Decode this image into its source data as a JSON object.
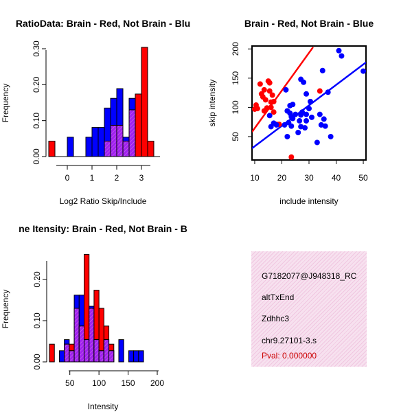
{
  "colors": {
    "red": "#ff0000",
    "blue": "#0000ff",
    "purple": "#a020f0",
    "black": "#000000",
    "pval": "#cc0000"
  },
  "chart_data": [
    {
      "type": "bar",
      "subtype": "histogram-overlay",
      "title": "RatioData: Brain - Red, Not Brain - Blu",
      "xlabel": "Log2 Ratio Skip/Include",
      "ylabel": "Frequency",
      "xlim": [
        -0.75,
        3.75
      ],
      "ylim": [
        0,
        0.3
      ],
      "xticks": [
        0,
        1,
        2,
        3
      ],
      "yticks": [
        0.0,
        0.1,
        0.2,
        0.3
      ],
      "yticklabels": [
        "0.00",
        "0.10",
        "0.20",
        "0.30"
      ],
      "bin_width": 0.25,
      "x_start": -0.75,
      "series": [
        {
          "name": "Brain",
          "color": "red",
          "values": [
            0.043,
            0,
            0,
            0,
            0,
            0,
            0,
            0,
            0,
            0.043,
            0.087,
            0.087,
            0.043,
            0.13,
            0.174,
            0.304,
            0.043
          ]
        },
        {
          "name": "Not Brain",
          "color": "blue",
          "values": [
            0,
            0,
            0,
            0.054,
            0,
            0,
            0.054,
            0.081,
            0.081,
            0.135,
            0.162,
            0.189,
            0.054,
            0.162,
            0,
            0,
            0
          ]
        }
      ]
    },
    {
      "type": "scatter",
      "title": "Brain - Red, Not Brain - Blue",
      "xlabel": "include intensity",
      "ylabel": "skip intensity",
      "xlim": [
        9,
        51
      ],
      "ylim": [
        10,
        205
      ],
      "xticks": [
        10,
        20,
        30,
        40,
        50
      ],
      "yticks": [
        50,
        100,
        150,
        200
      ],
      "series": [
        {
          "name": "Brain",
          "color": "red",
          "points": [
            [
              10,
              97
            ],
            [
              10.5,
              104
            ],
            [
              11,
              98
            ],
            [
              12,
              140
            ],
            [
              12.5,
              123
            ],
            [
              13,
              118
            ],
            [
              13.5,
              130
            ],
            [
              13.5,
              94
            ],
            [
              14,
              113
            ],
            [
              14.5,
              99
            ],
            [
              15,
              145
            ],
            [
              15.5,
              142
            ],
            [
              15.5,
              128
            ],
            [
              16,
              100
            ],
            [
              16.5,
              121
            ],
            [
              17,
              110
            ],
            [
              17,
              92
            ],
            [
              16,
              109
            ],
            [
              18,
              71
            ],
            [
              19,
              71
            ],
            [
              23.5,
              15
            ],
            [
              34,
              128
            ]
          ],
          "fit": {
            "x0": 9,
            "y0": 58,
            "x1": 31.5,
            "y1": 203
          }
        },
        {
          "name": "Not Brain",
          "color": "blue",
          "points": [
            [
              15.5,
              86
            ],
            [
              16,
              67
            ],
            [
              17,
              73
            ],
            [
              18,
              70
            ],
            [
              21,
              70
            ],
            [
              21.5,
              130
            ],
            [
              22,
              50
            ],
            [
              22,
              94
            ],
            [
              22.5,
              74
            ],
            [
              23,
              90
            ],
            [
              23,
              103
            ],
            [
              23.5,
              84
            ],
            [
              23.5,
              68
            ],
            [
              24,
              81
            ],
            [
              24,
              105
            ],
            [
              25,
              88
            ],
            [
              26,
              57
            ],
            [
              26.5,
              77
            ],
            [
              27,
              87
            ],
            [
              27,
              148
            ],
            [
              27.5,
              92
            ],
            [
              27,
              67
            ],
            [
              28,
              143
            ],
            [
              28.5,
              65
            ],
            [
              29,
              123
            ],
            [
              29,
              88
            ],
            [
              29,
              77
            ],
            [
              30,
              98
            ],
            [
              30.5,
              110
            ],
            [
              31,
              83
            ],
            [
              33,
              40
            ],
            [
              34,
              88
            ],
            [
              34.5,
              70
            ],
            [
              35,
              163
            ],
            [
              35.5,
              80
            ],
            [
              36,
              68
            ],
            [
              37,
              126
            ],
            [
              38,
              50
            ],
            [
              41,
              197
            ],
            [
              42,
              188
            ],
            [
              50,
              162
            ]
          ],
          "fit": {
            "x0": 9,
            "y0": 30,
            "x1": 51,
            "y1": 177
          }
        }
      ]
    },
    {
      "type": "bar",
      "subtype": "histogram-overlay",
      "title": "ne Itensity: Brain - Red, Not Brain - B",
      "xlabel": "Intensity",
      "ylabel": "Frequency",
      "xlim": [
        15,
        200
      ],
      "ylim": [
        0,
        0.26
      ],
      "xticks": [
        50,
        100,
        150,
        200
      ],
      "yticks": [
        0.0,
        0.1,
        0.2
      ],
      "yticklabels": [
        "0.00",
        "0.10",
        "0.20"
      ],
      "bin_width": 8.5,
      "x_start": 15,
      "series": [
        {
          "name": "Brain",
          "color": "red",
          "values": [
            0.043,
            0,
            0,
            0.043,
            0.043,
            0.13,
            0.087,
            0.261,
            0.13,
            0.174,
            0.13,
            0.087,
            0.043,
            0,
            0,
            0,
            0,
            0,
            0,
            0,
            0
          ]
        },
        {
          "name": "Not Brain",
          "color": "blue",
          "values": [
            0,
            0,
            0.027,
            0.054,
            0.027,
            0.162,
            0.162,
            0.054,
            0.135,
            0.054,
            0.027,
            0.054,
            0.027,
            0,
            0.054,
            0,
            0.027,
            0.027,
            0.027,
            0,
            0
          ]
        }
      ]
    }
  ],
  "info": {
    "lines": [
      "G7182077@J948318_RC",
      "altTxEnd",
      "Zdhhc3",
      "chr9.27101-3.s"
    ],
    "pval": "Pval: 0.000000"
  }
}
